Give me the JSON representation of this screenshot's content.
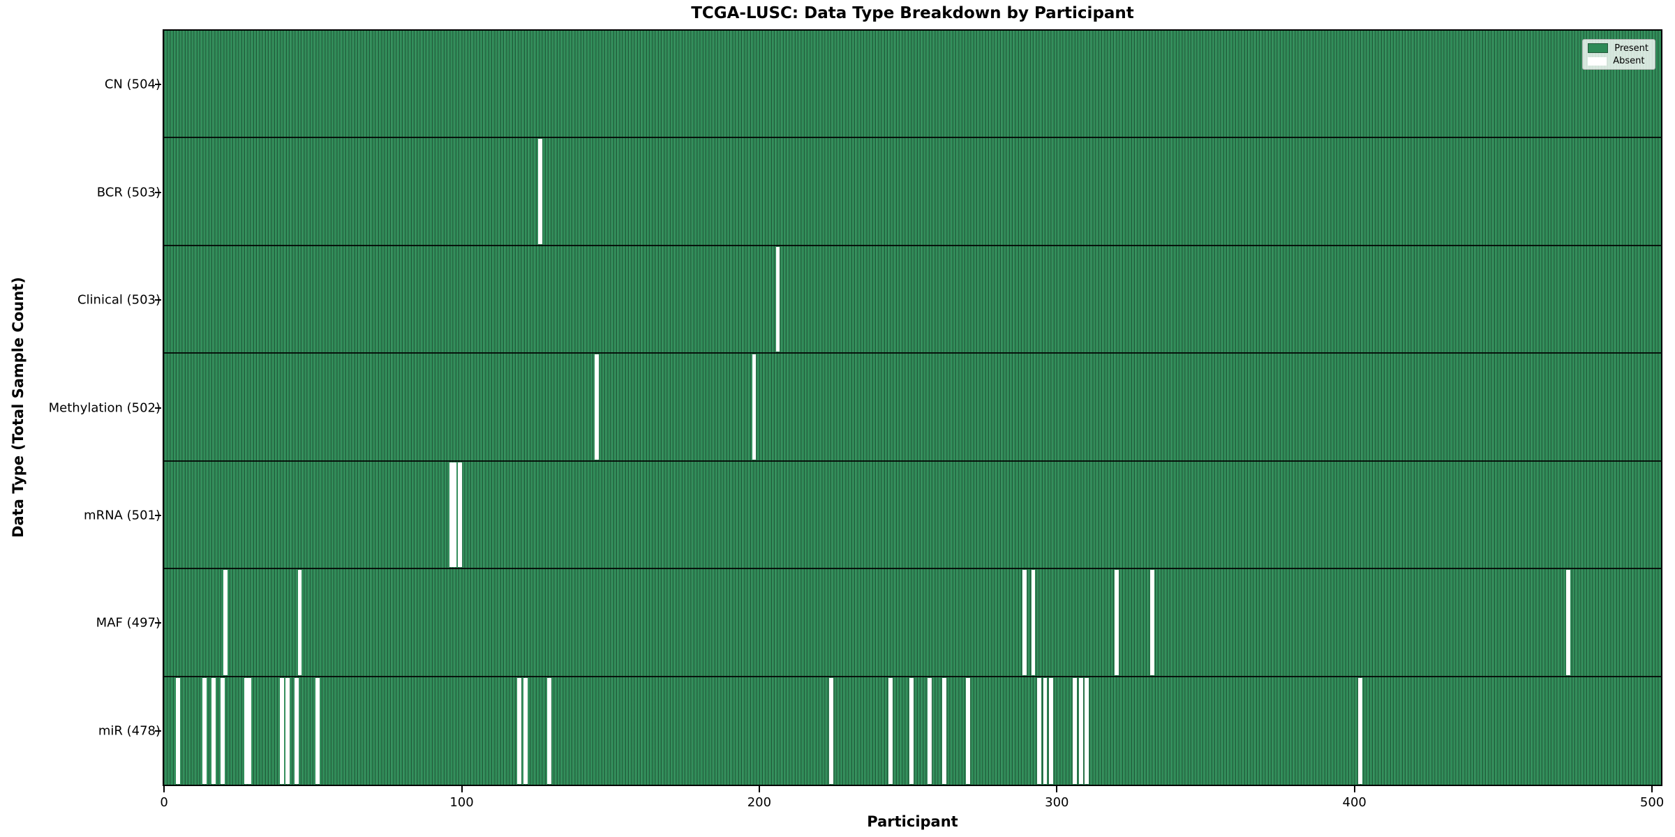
{
  "chart_data": {
    "type": "heatmap",
    "title": "TCGA-LUSC: Data Type Breakdown by Participant",
    "xlabel": "Participant",
    "ylabel": "Data Type (Total Sample Count)",
    "x_ticks": [
      0,
      100,
      200,
      300,
      400,
      500
    ],
    "x_max": 504,
    "grid": false,
    "legend_position": "upper right",
    "legend": {
      "present": "Present",
      "absent": "Absent"
    },
    "colors": {
      "present": "#2e8b57",
      "absent": "#ffffff",
      "edge": "#1b4d33"
    },
    "rows": [
      {
        "name": "CN",
        "label": "CN (504)",
        "present_count": 504,
        "absent_participants": []
      },
      {
        "name": "BCR",
        "label": "BCR (503)",
        "present_count": 503,
        "absent_participants": [
          126
        ]
      },
      {
        "name": "Clinical",
        "label": "Clinical (503)",
        "present_count": 503,
        "absent_participants": [
          206
        ]
      },
      {
        "name": "Methylation",
        "label": "Methylation (502)",
        "present_count": 502,
        "absent_participants": [
          145,
          198
        ]
      },
      {
        "name": "mRNA",
        "label": "mRNA (501)",
        "present_count": 501,
        "absent_participants": [
          96,
          97,
          99
        ]
      },
      {
        "name": "MAF",
        "label": "MAF (497)",
        "present_count": 497,
        "absent_participants": [
          20,
          45,
          289,
          292,
          320,
          332,
          472
        ]
      },
      {
        "name": "miR",
        "label": "miR (478)",
        "present_count": 478,
        "absent_participants": [
          4,
          13,
          16,
          19,
          27,
          28,
          39,
          41,
          44,
          51,
          119,
          121,
          129,
          224,
          244,
          251,
          257,
          262,
          270,
          294,
          296,
          298,
          306,
          308,
          310,
          402
        ]
      }
    ]
  }
}
